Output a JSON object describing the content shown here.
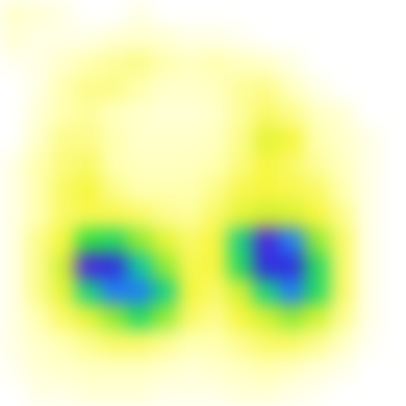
{
  "chart_data": {
    "type": "heatmap",
    "tick_labels": false,
    "cells": [
      [
        0.1,
        0.08,
        0.05,
        0,
        0,
        0.05,
        0,
        0,
        0,
        0,
        0,
        0,
        0,
        0,
        0,
        0
      ],
      [
        0.08,
        0.05,
        0.05,
        0.05,
        0.08,
        0.1,
        0.08,
        0.05,
        0.05,
        0.03,
        0,
        0,
        0,
        0,
        0,
        0
      ],
      [
        0.03,
        0.05,
        0.1,
        0.15,
        0.18,
        0.2,
        0.15,
        0.12,
        0.15,
        0.12,
        0.1,
        0.05,
        0,
        0,
        0,
        0
      ],
      [
        0,
        0.05,
        0.15,
        0.2,
        0.2,
        0.15,
        0.1,
        0.1,
        0.12,
        0.18,
        0.2,
        0.12,
        0.05,
        0,
        0,
        0
      ],
      [
        0,
        0.08,
        0.15,
        0.18,
        0.12,
        0.1,
        0.08,
        0.08,
        0.1,
        0.18,
        0.25,
        0.2,
        0.12,
        0.08,
        0,
        0
      ],
      [
        0,
        0.1,
        0.2,
        0.2,
        0.15,
        0.1,
        0.1,
        0.1,
        0.12,
        0.2,
        0.35,
        0.3,
        0.15,
        0.1,
        0.05,
        0
      ],
      [
        0.05,
        0.15,
        0.22,
        0.25,
        0.15,
        0.12,
        0.12,
        0.12,
        0.15,
        0.22,
        0.3,
        0.25,
        0.18,
        0.12,
        0.05,
        0
      ],
      [
        0.05,
        0.15,
        0.25,
        0.3,
        0.2,
        0.15,
        0.15,
        0.15,
        0.2,
        0.28,
        0.3,
        0.28,
        0.25,
        0.15,
        0.05,
        0
      ],
      [
        0.05,
        0.15,
        0.25,
        0.28,
        0.28,
        0.25,
        0.2,
        0.18,
        0.25,
        0.35,
        0.4,
        0.38,
        0.3,
        0.2,
        0.05,
        0
      ],
      [
        0.05,
        0.2,
        0.3,
        0.5,
        0.55,
        0.45,
        0.35,
        0.25,
        0.3,
        0.6,
        0.9,
        0.75,
        0.45,
        0.25,
        0.05,
        0
      ],
      [
        0.05,
        0.2,
        0.4,
        0.9,
        0.85,
        0.65,
        0.45,
        0.28,
        0.3,
        0.55,
        0.85,
        0.85,
        0.55,
        0.25,
        0.05,
        0
      ],
      [
        0.05,
        0.2,
        0.35,
        0.6,
        0.75,
        0.75,
        0.6,
        0.3,
        0.25,
        0.4,
        0.6,
        0.75,
        0.55,
        0.25,
        0.05,
        0
      ],
      [
        0.05,
        0.15,
        0.25,
        0.35,
        0.45,
        0.55,
        0.45,
        0.25,
        0.2,
        0.3,
        0.4,
        0.45,
        0.4,
        0.2,
        0.05,
        0
      ],
      [
        0.05,
        0.1,
        0.15,
        0.2,
        0.25,
        0.25,
        0.2,
        0.15,
        0.15,
        0.2,
        0.25,
        0.25,
        0.2,
        0.12,
        0.03,
        0
      ],
      [
        0.03,
        0.08,
        0.1,
        0.12,
        0.12,
        0.12,
        0.1,
        0.08,
        0.1,
        0.12,
        0.15,
        0.12,
        0.08,
        0.05,
        0,
        0
      ],
      [
        0,
        0.05,
        0.05,
        0.08,
        0.08,
        0.08,
        0.05,
        0.05,
        0.05,
        0.08,
        0.08,
        0.05,
        0.03,
        0,
        0,
        0
      ]
    ]
  }
}
